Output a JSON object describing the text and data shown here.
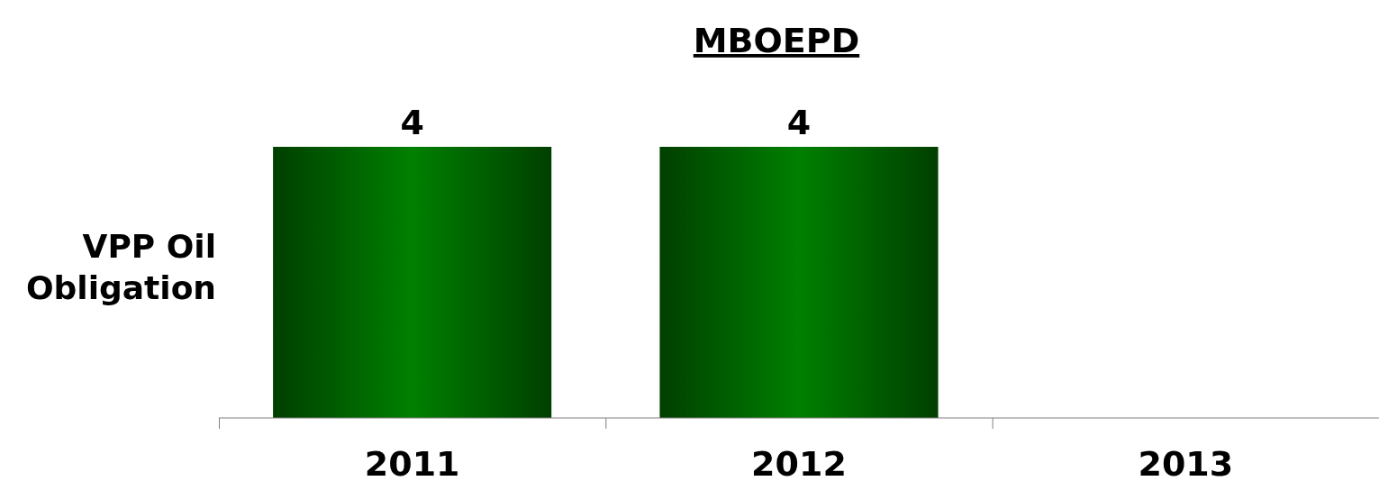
{
  "chart_data": {
    "type": "bar",
    "title": "MBOEPD",
    "ylabel": "VPP Oil Obligation",
    "categories": [
      "2011",
      "2012",
      "2013"
    ],
    "values": [
      4,
      4,
      null
    ],
    "color": "#008000",
    "data_labels": true
  }
}
